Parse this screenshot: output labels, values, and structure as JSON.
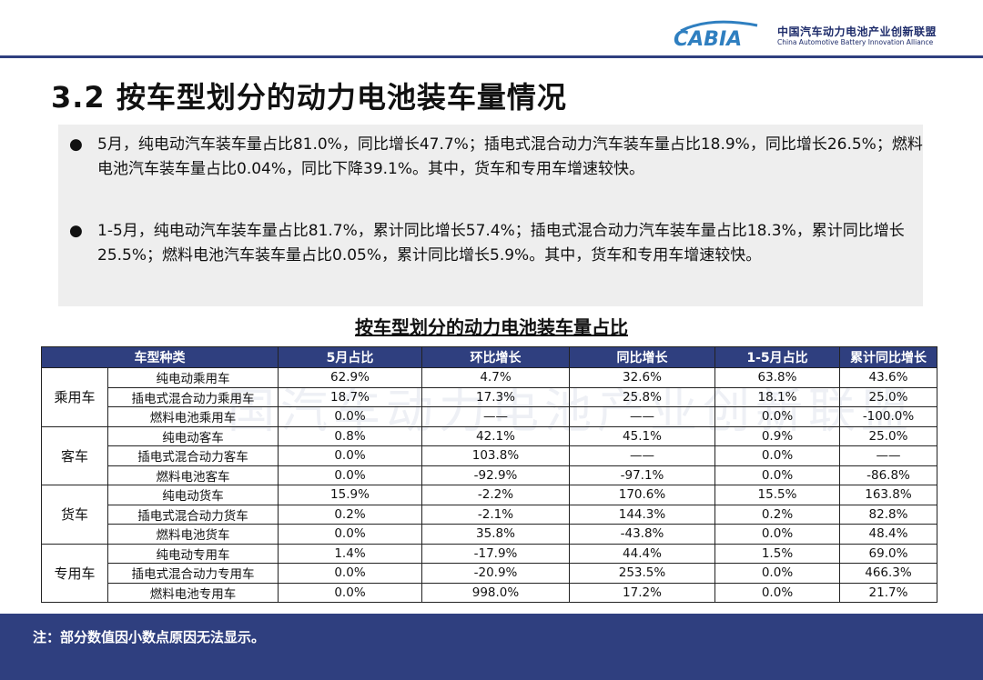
{
  "header": {
    "logo_text": "CABIA",
    "org_cn": "中国汽车动力电池产业创新联盟",
    "org_en": "China Automotive Battery Innovation Alliance"
  },
  "title": "3.2 按车型划分的动力电池装车量情况",
  "bullets": [
    "5月，纯电动汽车装车量占比81.0%，同比增长47.7%；插电式混合动力汽车装车量占比18.9%，同比增长26.5%；燃料电池汽车装车量占比0.04%，同比下降39.1%。其中，货车和专用车增速较快。",
    "1-5月，纯电动汽车装车量占比81.7%，累计同比增长57.4%；插电式混合动力汽车装车量占比18.3%，累计同比增长25.5%；燃料电池汽车装车量占比0.05%，累计同比增长5.9%。其中，货车和专用车增速较快。"
  ],
  "table": {
    "title": "按车型划分的动力电池装车量占比",
    "headers": [
      "车型种类",
      "5月占比",
      "环比增长",
      "同比增长",
      "1-5月占比",
      "累计同比增长"
    ],
    "groups": [
      {
        "category": "乘用车",
        "rows": [
          [
            "纯电动乘用车",
            "62.9%",
            "4.7%",
            "32.6%",
            "63.8%",
            "43.6%"
          ],
          [
            "插电式混合动力乘用车",
            "18.7%",
            "17.3%",
            "25.8%",
            "18.1%",
            "25.0%"
          ],
          [
            "燃料电池乘用车",
            "0.0%",
            "——",
            "——",
            "0.0%",
            "-100.0%"
          ]
        ]
      },
      {
        "category": "客车",
        "rows": [
          [
            "纯电动客车",
            "0.8%",
            "42.1%",
            "45.1%",
            "0.9%",
            "25.0%"
          ],
          [
            "插电式混合动力客车",
            "0.0%",
            "103.8%",
            "——",
            "0.0%",
            "——"
          ],
          [
            "燃料电池客车",
            "0.0%",
            "-92.9%",
            "-97.1%",
            "0.0%",
            "-86.8%"
          ]
        ]
      },
      {
        "category": "货车",
        "rows": [
          [
            "纯电动货车",
            "15.9%",
            "-2.2%",
            "170.6%",
            "15.5%",
            "163.8%"
          ],
          [
            "插电式混合动力货车",
            "0.2%",
            "-2.1%",
            "144.3%",
            "0.2%",
            "82.8%"
          ],
          [
            "燃料电池货车",
            "0.0%",
            "35.8%",
            "-43.8%",
            "0.0%",
            "48.4%"
          ]
        ]
      },
      {
        "category": "专用车",
        "rows": [
          [
            "纯电动专用车",
            "1.4%",
            "-17.9%",
            "44.4%",
            "1.5%",
            "69.0%"
          ],
          [
            "插电式混合动力专用车",
            "0.0%",
            "-20.9%",
            "253.5%",
            "0.0%",
            "466.3%"
          ],
          [
            "燃料电池专用车",
            "0.0%",
            "998.0%",
            "17.2%",
            "0.0%",
            "21.7%"
          ]
        ]
      }
    ]
  },
  "watermark": "国汽车动力电池产业创新联盟",
  "footer": {
    "note": "注：部分数值因小数点原因无法显示。"
  },
  "colors": {
    "brand": "#2f3f7f",
    "bullet_bg": "#eeeeee"
  }
}
